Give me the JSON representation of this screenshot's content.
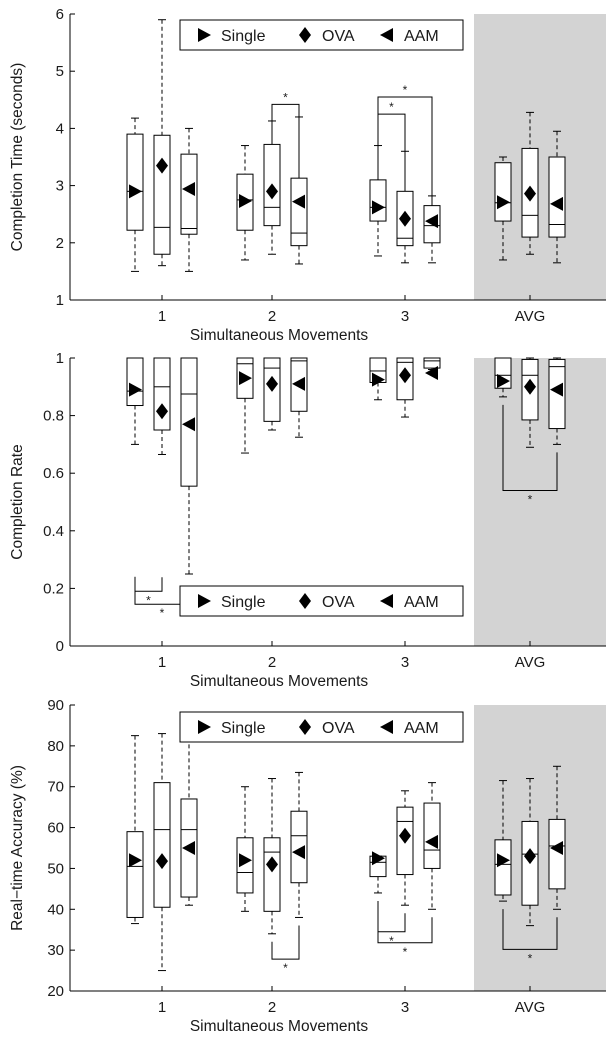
{
  "chart_data": [
    {
      "type": "box",
      "ylabel": "Completion Time (seconds)",
      "xlabel": "Simultaneous Movements",
      "categories": [
        "1",
        "2",
        "3",
        "AVG"
      ],
      "ylim": [
        1,
        6
      ],
      "yticks": [
        "1",
        "2",
        "3",
        "4",
        "5",
        "6"
      ],
      "shaded_category": "AVG",
      "legend": {
        "placement": "top",
        "entries": [
          "Single",
          "OVA",
          "AAM"
        ]
      },
      "series": [
        {
          "name": "Single",
          "marker": "triangle-right",
          "boxes": [
            {
              "whisker_low": 1.5,
              "q1": 2.22,
              "median": 2.9,
              "q3": 3.9,
              "whisker_high": 4.18,
              "mean": 2.9
            },
            {
              "whisker_low": 1.7,
              "q1": 2.22,
              "median": 2.75,
              "q3": 3.2,
              "whisker_high": 3.7,
              "mean": 2.73
            },
            {
              "whisker_low": 1.77,
              "q1": 2.38,
              "median": 2.62,
              "q3": 3.1,
              "whisker_high": 3.7,
              "mean": 2.62
            },
            {
              "whisker_low": 1.7,
              "q1": 2.38,
              "median": 2.7,
              "q3": 3.4,
              "whisker_high": 3.5,
              "mean": 2.71
            }
          ]
        },
        {
          "name": "OVA",
          "marker": "diamond",
          "boxes": [
            {
              "whisker_low": 1.6,
              "q1": 1.8,
              "median": 2.27,
              "q3": 3.88,
              "whisker_high": 5.9,
              "mean": 3.35
            },
            {
              "whisker_low": 1.8,
              "q1": 2.3,
              "median": 2.62,
              "q3": 3.72,
              "whisker_high": 4.13,
              "mean": 2.9
            },
            {
              "whisker_low": 1.65,
              "q1": 1.95,
              "median": 2.08,
              "q3": 2.9,
              "whisker_high": 3.6,
              "mean": 2.42
            },
            {
              "whisker_low": 1.8,
              "q1": 2.1,
              "median": 2.48,
              "q3": 3.65,
              "whisker_high": 4.28,
              "mean": 2.86
            }
          ]
        },
        {
          "name": "AAM",
          "marker": "triangle-left",
          "boxes": [
            {
              "whisker_low": 1.5,
              "q1": 2.15,
              "median": 2.25,
              "q3": 3.55,
              "whisker_high": 4.0,
              "mean": 2.94
            },
            {
              "whisker_low": 1.63,
              "q1": 1.95,
              "median": 2.17,
              "q3": 3.13,
              "whisker_high": 4.2,
              "mean": 2.72
            },
            {
              "whisker_low": 1.65,
              "q1": 2.0,
              "median": 2.3,
              "q3": 2.65,
              "whisker_high": 2.82,
              "mean": 2.38
            },
            {
              "whisker_low": 1.65,
              "q1": 2.1,
              "median": 2.32,
              "q3": 3.5,
              "whisker_high": 3.95,
              "mean": 2.68
            }
          ]
        }
      ],
      "significance": [
        {
          "category": "2",
          "between": [
            "OVA",
            "AAM"
          ],
          "label": "*",
          "side": "top",
          "at": 4.42
        },
        {
          "category": "3",
          "between": [
            "Single",
            "OVA"
          ],
          "label": "*",
          "side": "top",
          "at": 4.25
        },
        {
          "category": "3",
          "between": [
            "Single",
            "AAM"
          ],
          "label": "*",
          "side": "top",
          "at": 4.55
        }
      ]
    },
    {
      "type": "box",
      "ylabel": "Completion Rate",
      "xlabel": "Simultaneous Movements",
      "categories": [
        "1",
        "2",
        "3",
        "AVG"
      ],
      "ylim": [
        0,
        1
      ],
      "yticks": [
        "0",
        "0.2",
        "0.4",
        "0.6",
        "0.8",
        "1"
      ],
      "shaded_category": "AVG",
      "legend": {
        "placement": "bottom",
        "entries": [
          "Single",
          "OVA",
          "AAM"
        ]
      },
      "series": [
        {
          "name": "Single",
          "marker": "triangle-right",
          "boxes": [
            {
              "whisker_low": 0.7,
              "q1": 0.835,
              "median": 0.885,
              "q3": 1.0,
              "whisker_high": 1.0,
              "mean": 0.89
            },
            {
              "whisker_low": 0.67,
              "q1": 0.86,
              "median": 0.98,
              "q3": 1.0,
              "whisker_high": 1.0,
              "mean": 0.93
            },
            {
              "whisker_low": 0.855,
              "q1": 0.915,
              "median": 0.955,
              "q3": 1.0,
              "whisker_high": 1.0,
              "mean": 0.925
            },
            {
              "whisker_low": 0.865,
              "q1": 0.895,
              "median": 0.94,
              "q3": 1.0,
              "whisker_high": 1.0,
              "mean": 0.92
            }
          ]
        },
        {
          "name": "OVA",
          "marker": "diamond",
          "boxes": [
            {
              "whisker_low": 0.665,
              "q1": 0.75,
              "median": 0.9,
              "q3": 1.0,
              "whisker_high": 1.0,
              "mean": 0.815
            },
            {
              "whisker_low": 0.75,
              "q1": 0.78,
              "median": 0.965,
              "q3": 1.0,
              "whisker_high": 1.0,
              "mean": 0.91
            },
            {
              "whisker_low": 0.795,
              "q1": 0.855,
              "median": 0.985,
              "q3": 1.0,
              "whisker_high": 1.0,
              "mean": 0.94
            },
            {
              "whisker_low": 0.69,
              "q1": 0.785,
              "median": 0.94,
              "q3": 0.995,
              "whisker_high": 1.0,
              "mean": 0.9
            }
          ]
        },
        {
          "name": "AAM",
          "marker": "triangle-left",
          "boxes": [
            {
              "whisker_low": 0.25,
              "q1": 0.555,
              "median": 0.875,
              "q3": 1.0,
              "whisker_high": 1.0,
              "mean": 0.77
            },
            {
              "whisker_low": 0.725,
              "q1": 0.815,
              "median": 0.99,
              "q3": 1.0,
              "whisker_high": 1.0,
              "mean": 0.91
            },
            {
              "whisker_low": 0.96,
              "q1": 0.965,
              "median": 0.99,
              "q3": 1.0,
              "whisker_high": 1.0,
              "mean": 0.948
            },
            {
              "whisker_low": 0.7,
              "q1": 0.755,
              "median": 0.97,
              "q3": 0.995,
              "whisker_high": 1.0,
              "mean": 0.89
            }
          ]
        }
      ],
      "significance": [
        {
          "category": "1",
          "between": [
            "Single",
            "OVA"
          ],
          "label": "*",
          "side": "bottom",
          "at": 0.19
        },
        {
          "category": "1",
          "between": [
            "Single",
            "AAM"
          ],
          "label": "*",
          "side": "bottom",
          "at": 0.145
        },
        {
          "category": "AVG",
          "between": [
            "Single",
            "AAM"
          ],
          "label": "*",
          "side": "bottom",
          "at": 0.54
        }
      ]
    },
    {
      "type": "box",
      "ylabel": "Real−time Accuracy (%)",
      "xlabel": "Simultaneous Movements",
      "categories": [
        "1",
        "2",
        "3",
        "AVG"
      ],
      "ylim": [
        20,
        90
      ],
      "yticks": [
        "20",
        "30",
        "40",
        "50",
        "60",
        "70",
        "80",
        "90"
      ],
      "shaded_category": "AVG",
      "legend": {
        "placement": "top",
        "entries": [
          "Single",
          "OVA",
          "AAM"
        ]
      },
      "series": [
        {
          "name": "Single",
          "marker": "triangle-right",
          "boxes": [
            {
              "whisker_low": 36.5,
              "q1": 38,
              "median": 50.5,
              "q3": 59,
              "whisker_high": 82.5,
              "mean": 52
            },
            {
              "whisker_low": 39.5,
              "q1": 44,
              "median": 49,
              "q3": 57.5,
              "whisker_high": 70,
              "mean": 52
            },
            {
              "whisker_low": 44,
              "q1": 48,
              "median": 51.5,
              "q3": 53,
              "whisker_high": 53,
              "mean": 52.5
            },
            {
              "whisker_low": 42,
              "q1": 43.5,
              "median": 51,
              "q3": 57,
              "whisker_high": 71.5,
              "mean": 52
            }
          ]
        },
        {
          "name": "OVA",
          "marker": "diamond",
          "boxes": [
            {
              "whisker_low": 25,
              "q1": 40.5,
              "median": 59.5,
              "q3": 71,
              "whisker_high": 83,
              "mean": 51.8
            },
            {
              "whisker_low": 34,
              "q1": 39.5,
              "median": 54,
              "q3": 57.5,
              "whisker_high": 72,
              "mean": 51
            },
            {
              "whisker_low": 41,
              "q1": 48.5,
              "median": 61.5,
              "q3": 65,
              "whisker_high": 69,
              "mean": 58
            },
            {
              "whisker_low": 36,
              "q1": 41,
              "median": 53.5,
              "q3": 61.5,
              "whisker_high": 72,
              "mean": 53
            }
          ]
        },
        {
          "name": "AAM",
          "marker": "triangle-left",
          "boxes": [
            {
              "whisker_low": 41,
              "q1": 43,
              "median": 59.5,
              "q3": 67,
              "whisker_high": 85.5,
              "mean": 55
            },
            {
              "whisker_low": 38,
              "q1": 46.5,
              "median": 58,
              "q3": 64,
              "whisker_high": 73.5,
              "mean": 54
            },
            {
              "whisker_low": 40,
              "q1": 50,
              "median": 54.5,
              "q3": 66,
              "whisker_high": 71,
              "mean": 56.5
            },
            {
              "whisker_low": 40,
              "q1": 45,
              "median": 55.5,
              "q3": 62,
              "whisker_high": 75,
              "mean": 55
            }
          ]
        }
      ],
      "significance": [
        {
          "category": "2",
          "between": [
            "OVA",
            "AAM"
          ],
          "label": "*",
          "side": "bottom",
          "at": 27.8
        },
        {
          "category": "3",
          "between": [
            "Single",
            "OVA"
          ],
          "label": "*",
          "side": "bottom",
          "at": 34.5
        },
        {
          "category": "3",
          "between": [
            "Single",
            "AAM"
          ],
          "label": "*",
          "side": "bottom",
          "at": 31.8
        },
        {
          "category": "AVG",
          "between": [
            "Single",
            "AAM"
          ],
          "label": "*",
          "side": "bottom",
          "at": 30.2
        }
      ]
    }
  ]
}
